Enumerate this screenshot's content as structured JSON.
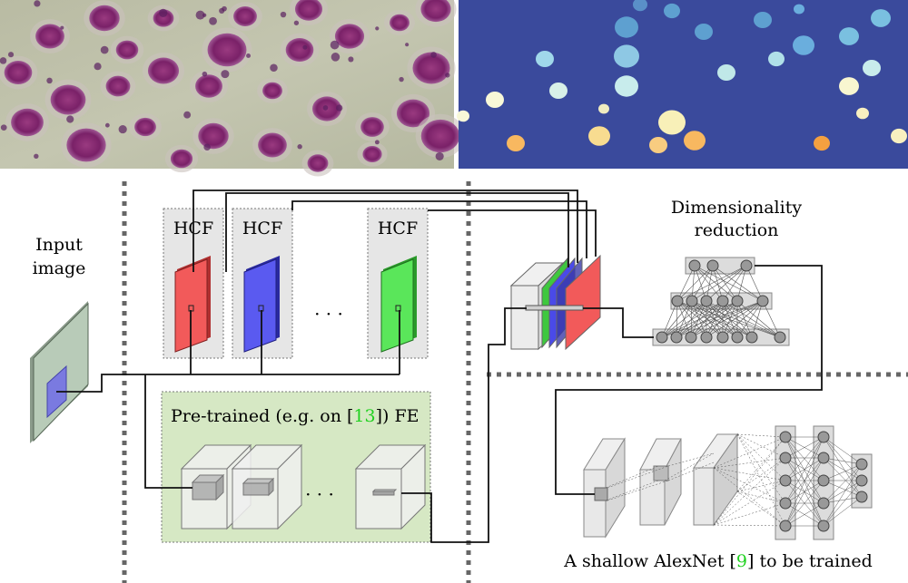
{
  "panels": {
    "micrograph": {
      "description_icon": "stained-cell-micrograph"
    },
    "segmentation": {
      "description_icon": "segmentation-mask"
    }
  },
  "labels": {
    "input_image_line1": "Input",
    "input_image_line2": "image",
    "hcf_1": "HCF",
    "hcf_2": "HCF",
    "hcf_3": "HCF",
    "hcf_ellipsis": "· · ·",
    "pretrained_prefix": "Pre-trained (e.g. on [",
    "pretrained_ref": "13",
    "pretrained_suffix": "]) FE",
    "fe_ellipsis": "· · ·",
    "dimred_line1": "Dimensionality",
    "dimred_line2": "reduction",
    "alexnet_prefix": "A shallow AlexNet [",
    "alexnet_ref": "9",
    "alexnet_suffix": "] to be trained"
  },
  "colors": {
    "hcf_red": "#f25a5a",
    "hcf_blue": "#5a5af0",
    "hcf_green": "#5ae65a",
    "ref_green": "#1fd11f",
    "fe_box": "#d6e8c4",
    "seg_bg": "#3a4a9c",
    "input_plate": "#b8cbb8"
  }
}
